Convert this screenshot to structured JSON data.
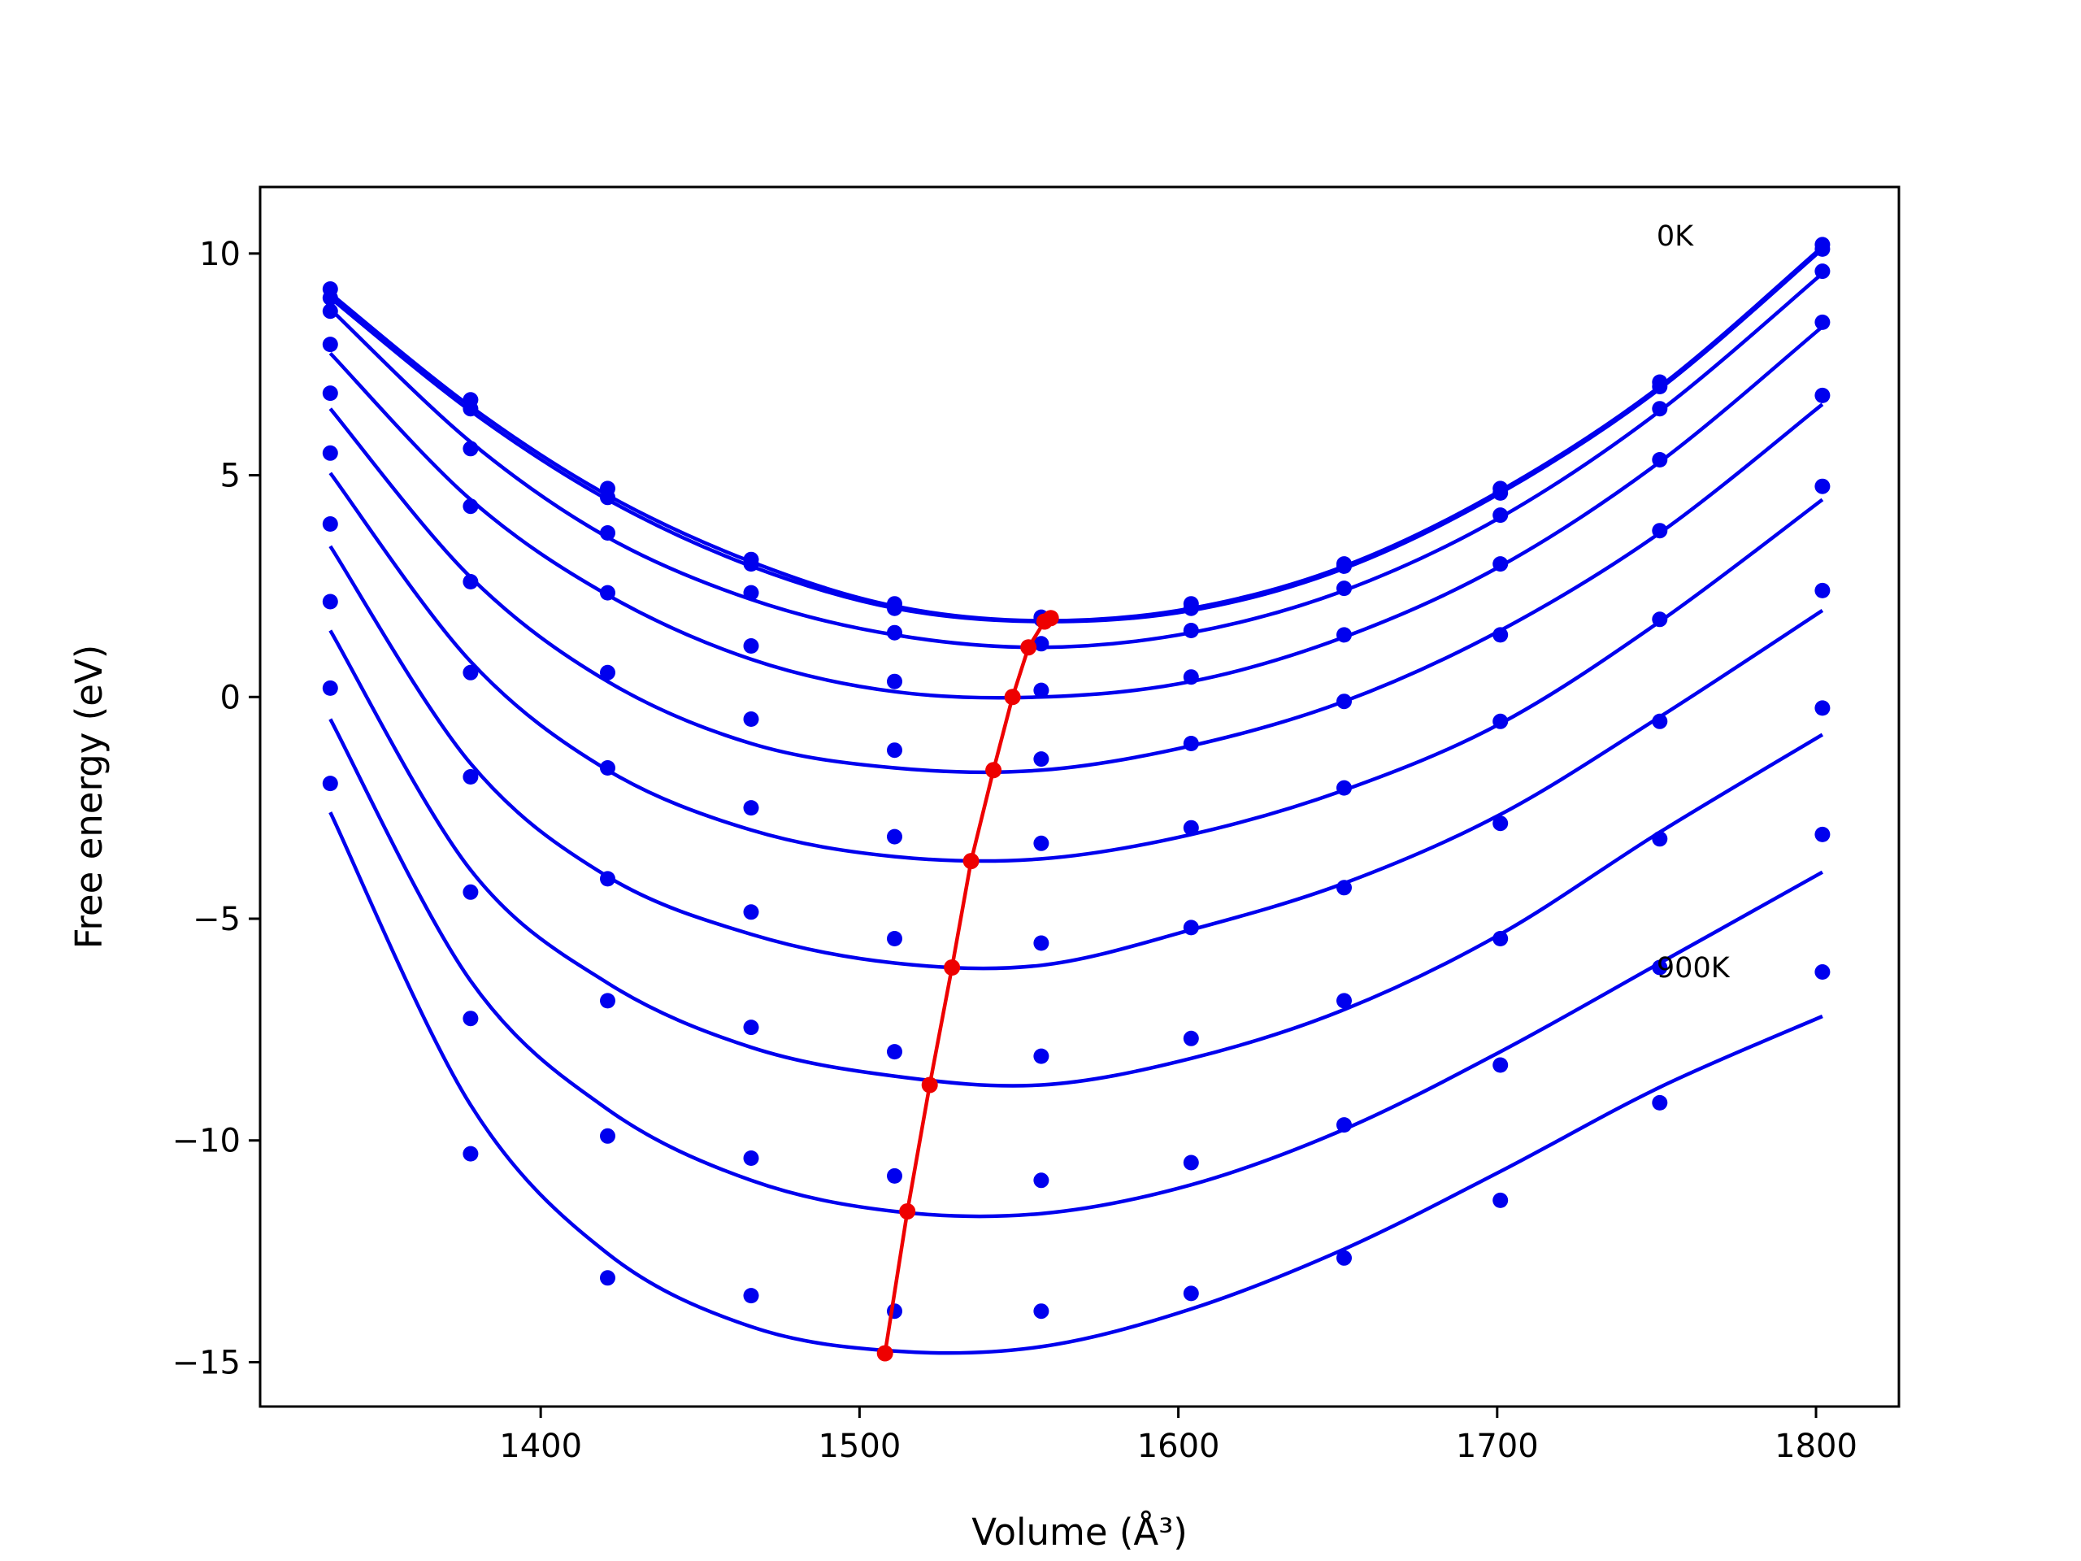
{
  "chart_data": {
    "type": "scatter",
    "title": "",
    "xlabel": "Volume (Å³)",
    "ylabel": "Free energy (eV)",
    "xlim": [
      1312,
      1826
    ],
    "ylim": [
      -16.0,
      11.5
    ],
    "xticks": [
      1400,
      1500,
      1600,
      1700,
      1800
    ],
    "xtick_labels": [
      "1400",
      "1500",
      "1600",
      "1700",
      "1800"
    ],
    "yticks": [
      -15,
      -10,
      -5,
      0,
      5,
      10
    ],
    "ytick_labels": [
      "−15",
      "−10",
      "−5",
      "0",
      "5",
      "10"
    ],
    "grid": false,
    "legend": "none",
    "volumes": [
      1334,
      1378,
      1421,
      1466,
      1511,
      1557,
      1604,
      1652,
      1701,
      1751,
      1802
    ],
    "series": [
      {
        "points": [
          9.2,
          6.7,
          4.7,
          3.1,
          2.1,
          1.8,
          2.1,
          3.0,
          4.7,
          7.1,
          10.2
        ],
        "fit": [
          9.1,
          6.55,
          4.55,
          3.05,
          2.05,
          1.72,
          2.0,
          2.95,
          4.65,
          7.0,
          10.15
        ]
      },
      {
        "points": [
          9.0,
          6.5,
          4.5,
          3.0,
          2.0,
          1.75,
          2.0,
          2.95,
          4.6,
          7.0,
          10.1
        ],
        "fit": [
          9.0,
          6.45,
          4.45,
          2.95,
          2.0,
          1.7,
          1.95,
          2.9,
          4.6,
          6.95,
          10.1
        ]
      },
      {
        "points": [
          8.7,
          5.6,
          3.7,
          2.35,
          1.45,
          1.2,
          1.5,
          2.45,
          4.1,
          6.5,
          9.6
        ],
        "fit": [
          8.75,
          5.75,
          3.6,
          2.2,
          1.4,
          1.12,
          1.45,
          2.4,
          4.05,
          6.45,
          9.55
        ]
      },
      {
        "points": [
          7.95,
          4.3,
          2.35,
          1.15,
          0.35,
          0.15,
          0.45,
          1.4,
          3.0,
          5.35,
          8.45
        ],
        "fit": [
          7.75,
          4.45,
          2.3,
          0.85,
          0.12,
          0.0,
          0.35,
          1.35,
          2.95,
          5.3,
          8.35
        ]
      },
      {
        "points": [
          6.85,
          2.6,
          0.55,
          -0.5,
          -1.2,
          -1.4,
          -1.05,
          -0.1,
          1.4,
          3.75,
          6.8
        ],
        "fit": [
          6.5,
          2.7,
          0.35,
          -1.05,
          -1.6,
          -1.65,
          -1.1,
          -0.1,
          1.5,
          3.7,
          6.6
        ]
      },
      {
        "points": [
          5.5,
          0.55,
          -1.6,
          -2.5,
          -3.15,
          -3.3,
          -2.95,
          -2.05,
          -0.55,
          1.75,
          4.75
        ],
        "fit": [
          5.05,
          0.8,
          -1.65,
          -3.0,
          -3.6,
          -3.65,
          -3.1,
          -2.1,
          -0.6,
          1.7,
          4.45
        ]
      },
      {
        "points": [
          3.9,
          -1.8,
          -4.1,
          -4.85,
          -5.45,
          -5.55,
          -5.2,
          -4.3,
          -2.85,
          -0.55,
          2.4
        ],
        "fit": [
          3.4,
          -1.5,
          -4.05,
          -5.35,
          -6.0,
          -6.05,
          -5.25,
          -4.2,
          -2.65,
          -0.45,
          1.95
        ]
      },
      {
        "points": [
          2.15,
          -4.4,
          -6.85,
          -7.45,
          -8.0,
          -8.1,
          -7.7,
          -6.85,
          -5.45,
          -3.2,
          -0.25
        ],
        "fit": [
          1.5,
          -3.9,
          -6.45,
          -7.9,
          -8.55,
          -8.75,
          -8.15,
          -7.05,
          -5.35,
          -3.05,
          -0.85
        ]
      },
      {
        "points": [
          0.2,
          -7.25,
          -9.9,
          -10.4,
          -10.8,
          -10.9,
          -10.5,
          -9.65,
          -8.3,
          -6.1,
          -3.1
        ],
        "fit": [
          -0.5,
          -6.4,
          -9.3,
          -10.9,
          -11.6,
          -11.65,
          -11.0,
          -9.75,
          -8.0,
          -6.0,
          -3.95
        ]
      },
      {
        "points": [
          -1.95,
          -10.3,
          -13.1,
          -13.5,
          -13.85,
          -13.85,
          -13.45,
          -12.65,
          -11.35,
          -9.15,
          -6.2
        ],
        "fit": [
          -2.6,
          -9.2,
          -12.55,
          -14.2,
          -14.75,
          -14.65,
          -13.8,
          -12.45,
          -10.7,
          -8.8,
          -7.2
        ]
      }
    ],
    "minima": {
      "volume": [
        1508,
        1515,
        1522,
        1529,
        1535,
        1542,
        1548,
        1553,
        1558,
        1560
      ],
      "energy": [
        -14.8,
        -11.6,
        -8.75,
        -6.1,
        -3.7,
        -1.65,
        0.0,
        1.12,
        1.7,
        1.78
      ]
    },
    "colors": {
      "series": "#0000ee",
      "minima": "#ee0000"
    },
    "annotations": [
      {
        "text": "0K",
        "x": 1750,
        "y": 10.4
      },
      {
        "text": "900K",
        "x": 1750,
        "y": -6.1
      }
    ]
  }
}
